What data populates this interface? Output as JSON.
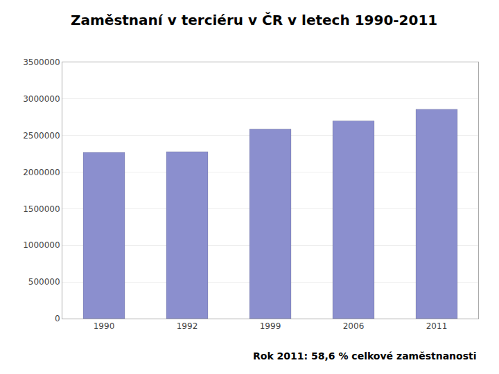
{
  "chart_data": {
    "type": "bar",
    "title": "Zaměstnaní v terciéru v ČR v letech 1990-2011",
    "subtitle": "Rok 2011: 58,6 % celkové zaměstnanosti",
    "categories": [
      "1990",
      "1992",
      "1999",
      "2006",
      "2011"
    ],
    "values": [
      2270000,
      2280000,
      2590000,
      2700000,
      2860000
    ],
    "color": "#8B8FCE",
    "ylim": [
      0,
      3500000
    ],
    "yticks": [
      0,
      500000,
      1000000,
      1500000,
      2000000,
      2500000,
      3000000,
      3500000
    ],
    "grid": true
  }
}
